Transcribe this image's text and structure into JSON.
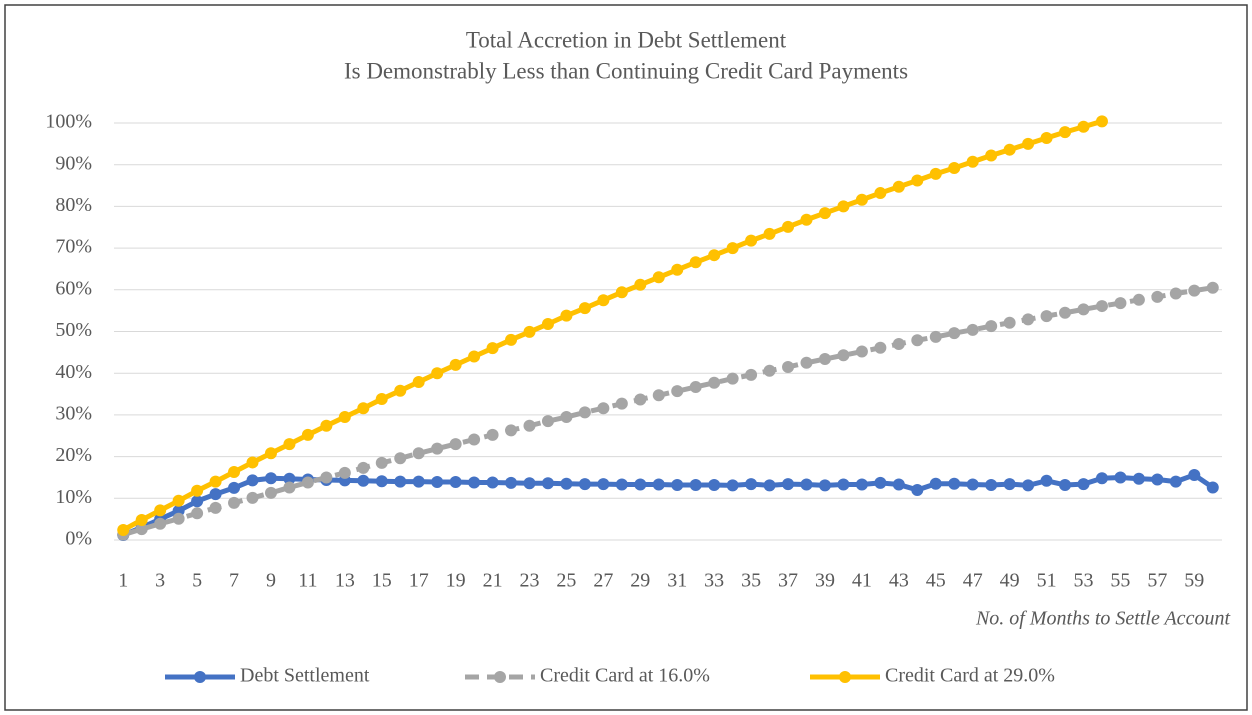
{
  "chart_data": {
    "type": "line",
    "title": "Total Accretion in Debt Settlement",
    "subtitle": "Is Demonstrably Less than Continuing Credit Card Payments",
    "x_label": "No. of Months to Settle Account",
    "categories": [
      1,
      null,
      3,
      null,
      5,
      null,
      7,
      null,
      9,
      null,
      11,
      null,
      13,
      null,
      15,
      null,
      17,
      null,
      19,
      null,
      21,
      null,
      23,
      null,
      25,
      null,
      27,
      null,
      29,
      null,
      31,
      null,
      33,
      null,
      35,
      null,
      37,
      null,
      39,
      null,
      41,
      null,
      43,
      null,
      45,
      null,
      47,
      null,
      49,
      null,
      51,
      null,
      53,
      null,
      55,
      null,
      57,
      null,
      59,
      null
    ],
    "ylim": [
      0,
      100
    ],
    "yticks": [
      {
        "value": 0,
        "label": "0%"
      },
      {
        "value": 10,
        "label": "10%"
      },
      {
        "value": 20,
        "label": "20%"
      },
      {
        "value": 30,
        "label": "30%"
      },
      {
        "value": 40,
        "label": "40%"
      },
      {
        "value": 50,
        "label": "50%"
      },
      {
        "value": 60,
        "label": "60%"
      },
      {
        "value": 70,
        "label": "70%"
      },
      {
        "value": 80,
        "label": "80%"
      },
      {
        "value": 90,
        "label": "90%"
      },
      {
        "value": 100,
        "label": "100%"
      }
    ],
    "grid": true,
    "legend": "bottom",
    "series": [
      {
        "name": "Debt Settlement",
        "color": "#4472c4",
        "dash": false,
        "values": [
          1.2,
          3.0,
          5.0,
          7.0,
          9.3,
          11.0,
          12.5,
          14.3,
          14.8,
          14.7,
          14.5,
          14.4,
          14.3,
          14.2,
          14.1,
          14.0,
          14.0,
          13.9,
          13.9,
          13.8,
          13.8,
          13.7,
          13.6,
          13.6,
          13.5,
          13.4,
          13.4,
          13.3,
          13.3,
          13.3,
          13.2,
          13.2,
          13.2,
          13.1,
          13.4,
          13.1,
          13.4,
          13.3,
          13.1,
          13.3,
          13.3,
          13.7,
          13.3,
          12.0,
          13.5,
          13.5,
          13.3,
          13.2,
          13.4,
          13.1,
          14.2,
          13.2,
          13.4,
          14.8,
          15.0,
          14.7,
          14.5,
          14.0,
          15.6,
          12.6
        ]
      },
      {
        "name": "Credit Card at 16.0%",
        "color": "#a5a5a5",
        "dash": true,
        "values": [
          1.3,
          2.6,
          3.9,
          5.1,
          6.4,
          7.7,
          8.9,
          10.1,
          11.3,
          12.6,
          13.8,
          15.0,
          16.1,
          17.3,
          18.5,
          19.6,
          20.8,
          21.9,
          23.0,
          24.1,
          25.2,
          26.3,
          27.4,
          28.5,
          29.5,
          30.6,
          31.6,
          32.7,
          33.7,
          34.7,
          35.7,
          36.7,
          37.7,
          38.7,
          39.6,
          40.6,
          41.5,
          42.5,
          43.4,
          44.3,
          45.2,
          46.1,
          47.0,
          47.9,
          48.7,
          49.6,
          50.4,
          51.3,
          52.1,
          52.9,
          53.7,
          54.5,
          55.3,
          56.1,
          56.8,
          57.6,
          58.3,
          59.1,
          59.8,
          60.5
        ]
      },
      {
        "name": "Credit Card at 29.0%",
        "color": "#ffc000",
        "dash": false,
        "values": [
          2.4,
          4.8,
          7.1,
          9.4,
          11.8,
          14.0,
          16.3,
          18.6,
          20.8,
          23.0,
          25.2,
          27.4,
          29.5,
          31.6,
          33.8,
          35.8,
          37.9,
          40.0,
          42.0,
          44.0,
          46.0,
          48.0,
          49.9,
          51.8,
          53.8,
          55.6,
          57.5,
          59.4,
          61.2,
          63.0,
          64.8,
          66.6,
          68.3,
          70.0,
          71.8,
          73.4,
          75.1,
          76.8,
          78.4,
          80.0,
          81.6,
          83.2,
          84.7,
          86.2,
          87.8,
          89.2,
          90.7,
          92.2,
          93.6,
          95.0,
          96.4,
          97.8,
          99.1,
          100.4,
          null,
          null,
          null,
          null,
          null,
          null
        ]
      }
    ]
  }
}
